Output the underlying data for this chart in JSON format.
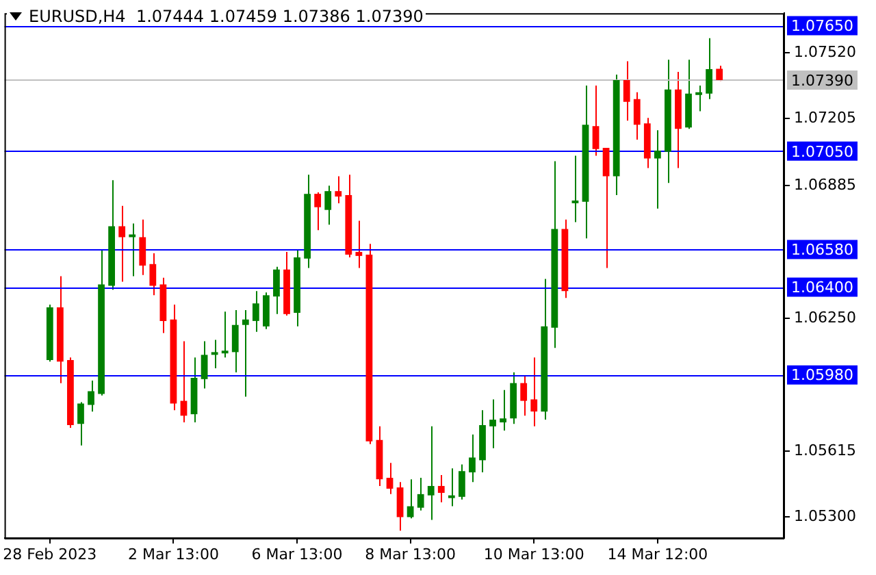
{
  "chart_data": {
    "type": "candlestick",
    "title": "EURUSD,H4  1.07444 1.07459 1.07386 1.07390",
    "categories": [
      "28 Feb 2023",
      null,
      null,
      null,
      null,
      null,
      null,
      null,
      null,
      null,
      null,
      null,
      "2 Mar 13:00",
      null,
      null,
      null,
      null,
      null,
      null,
      null,
      null,
      null,
      null,
      null,
      "6 Mar 13:00",
      null,
      null,
      null,
      null,
      null,
      null,
      null,
      null,
      null,
      null,
      "8 Mar 13:00",
      null,
      null,
      null,
      null,
      null,
      null,
      null,
      null,
      null,
      null,
      null,
      "10 Mar 13:00",
      null,
      null,
      null,
      null,
      null,
      null,
      null,
      null,
      null,
      null,
      null,
      "14 Mar 12:00",
      null,
      null,
      null,
      null,
      null,
      null
    ],
    "ohlc": [
      [
        1.06051,
        1.06316,
        1.06044,
        1.06303
      ],
      [
        1.06303,
        1.06452,
        1.05941,
        1.06044
      ],
      [
        1.06051,
        1.06063,
        1.05727,
        1.0574
      ],
      [
        1.05746,
        1.0585,
        1.05643,
        1.05843
      ],
      [
        1.05837,
        1.05953,
        1.05805,
        1.05902
      ],
      [
        1.05889,
        1.06581,
        1.05882,
        1.06413
      ],
      [
        1.06406,
        1.06911,
        1.06387,
        1.06691
      ],
      [
        1.06691,
        1.06788,
        1.06426,
        1.06639
      ],
      [
        1.06639,
        1.06704,
        1.06452,
        1.06652
      ],
      [
        1.06639,
        1.06723,
        1.06458,
        1.06503
      ],
      [
        1.0651,
        1.06562,
        1.06361,
        1.06406
      ],
      [
        1.06413,
        1.06445,
        1.0618,
        1.06238
      ],
      [
        1.06245,
        1.06316,
        1.05811,
        1.05843
      ],
      [
        1.05856,
        1.06141,
        1.05753,
        1.05785
      ],
      [
        1.05792,
        1.06063,
        1.05753,
        1.05966
      ],
      [
        1.0596,
        1.06141,
        1.05915,
        1.06076
      ],
      [
        1.06076,
        1.06148,
        1.06012,
        1.06089
      ],
      [
        1.06083,
        1.06283,
        1.06063,
        1.06096
      ],
      [
        1.06089,
        1.0629,
        1.05992,
        1.06219
      ],
      [
        1.06219,
        1.0629,
        1.05876,
        1.06245
      ],
      [
        1.06238,
        1.06381,
        1.06186,
        1.06322
      ],
      [
        1.06212,
        1.06374,
        1.06199,
        1.06361
      ],
      [
        1.06355,
        1.06497,
        1.06271,
        1.06484
      ],
      [
        1.06484,
        1.06568,
        1.06264,
        1.06271
      ],
      [
        1.06277,
        1.06575,
        1.06212,
        1.06542
      ],
      [
        1.06536,
        1.06937,
        1.06491,
        1.06846
      ],
      [
        1.06846,
        1.06853,
        1.06672,
        1.06782
      ],
      [
        1.06769,
        1.06885,
        1.06698,
        1.06859
      ],
      [
        1.06859,
        1.0693,
        1.06801,
        1.06833
      ],
      [
        1.0684,
        1.06937,
        1.06542,
        1.06555
      ],
      [
        1.06568,
        1.06717,
        1.06491,
        1.06549
      ],
      [
        1.06555,
        1.06607,
        1.05649,
        1.05662
      ],
      [
        1.05669,
        1.05734,
        1.05449,
        1.05481
      ],
      [
        1.05488,
        1.05559,
        1.0541,
        1.05436
      ],
      [
        1.05442,
        1.05468,
        1.05235,
        1.053
      ],
      [
        1.053,
        1.05481,
        1.05294,
        1.05352
      ],
      [
        1.05345,
        1.05488,
        1.05332,
        1.0541
      ],
      [
        1.05404,
        1.05734,
        1.05287,
        1.05449
      ],
      [
        1.05449,
        1.05501,
        1.05371,
        1.05416
      ],
      [
        1.05391,
        1.05533,
        1.05352,
        1.05404
      ],
      [
        1.05397,
        1.05552,
        1.05384,
        1.0552
      ],
      [
        1.05514,
        1.05695,
        1.05468,
        1.05585
      ],
      [
        1.05572,
        1.05811,
        1.05514,
        1.0574
      ],
      [
        1.05734,
        1.05863,
        1.0563,
        1.05766
      ],
      [
        1.05753,
        1.05908,
        1.05714,
        1.05772
      ],
      [
        1.05772,
        1.05992,
        1.05746,
        1.05941
      ],
      [
        1.05941,
        1.05973,
        1.05785,
        1.05856
      ],
      [
        1.05863,
        1.06063,
        1.05734,
        1.05805
      ],
      [
        1.05805,
        1.06439,
        1.05766,
        1.06212
      ],
      [
        1.06206,
        1.07002,
        1.06109,
        1.06678
      ],
      [
        1.06678,
        1.06723,
        1.06348,
        1.06381
      ],
      [
        1.06801,
        1.07028,
        1.06711,
        1.06814
      ],
      [
        1.06808,
        1.07364,
        1.06633,
        1.07176
      ],
      [
        1.0717,
        1.07364,
        1.07028,
        1.0706
      ],
      [
        1.07066,
        1.07066,
        1.06491,
        1.0693
      ],
      [
        1.0693,
        1.07416,
        1.0684,
        1.0739
      ],
      [
        1.0739,
        1.0748,
        1.07196,
        1.07286
      ],
      [
        1.07299,
        1.07332,
        1.07105,
        1.07176
      ],
      [
        1.07183,
        1.07209,
        1.06969,
        1.07015
      ],
      [
        1.07015,
        1.0715,
        1.06775,
        1.07053
      ],
      [
        1.07047,
        1.07487,
        1.06898,
        1.07345
      ],
      [
        1.07345,
        1.07429,
        1.06969,
        1.07157
      ],
      [
        1.07163,
        1.07487,
        1.07157,
        1.07325
      ],
      [
        1.07319,
        1.07364,
        1.07241,
        1.07332
      ],
      [
        1.07325,
        1.0759,
        1.07299,
        1.07442
      ],
      [
        1.07444,
        1.07459,
        1.07386,
        1.0739
      ]
    ],
    "colors": [
      "#008000",
      "#ff0000",
      "#ff0000",
      "#008000",
      "#008000",
      "#008000",
      "#008000",
      "#ff0000",
      "#008000",
      "#ff0000",
      "#ff0000",
      "#ff0000",
      "#ff0000",
      "#ff0000",
      "#008000",
      "#008000",
      "#008000",
      "#008000",
      "#008000",
      "#008000",
      "#008000",
      "#008000",
      "#008000",
      "#ff0000",
      "#008000",
      "#008000",
      "#ff0000",
      "#008000",
      "#ff0000",
      "#ff0000",
      "#ff0000",
      "#ff0000",
      "#ff0000",
      "#ff0000",
      "#ff0000",
      "#008000",
      "#008000",
      "#008000",
      "#ff0000",
      "#008000",
      "#008000",
      "#008000",
      "#008000",
      "#008000",
      "#008000",
      "#008000",
      "#ff0000",
      "#ff0000",
      "#008000",
      "#008000",
      "#ff0000",
      "#008000",
      "#008000",
      "#ff0000",
      "#ff0000",
      "#008000",
      "#ff0000",
      "#ff0000",
      "#ff0000",
      "#008000",
      "#008000",
      "#ff0000",
      "#008000",
      "#008000",
      "#008000",
      "#ff0000"
    ],
    "ylim": [
      1.052,
      1.0771
    ],
    "yticks": [
      {
        "value": 1.0752,
        "label": "1.07520"
      },
      {
        "value": 1.07205,
        "label": "1.07205"
      },
      {
        "value": 1.06885,
        "label": "1.06885"
      },
      {
        "value": 1.0625,
        "label": "1.06250"
      },
      {
        "value": 1.05615,
        "label": "1.05615"
      },
      {
        "value": 1.053,
        "label": "1.05300"
      }
    ],
    "ref_lines": [
      {
        "axis": "y",
        "value": 1.0765,
        "label": "1.07650",
        "color": "#0000ff"
      },
      {
        "axis": "y",
        "value": 1.0739,
        "label": "1.07390",
        "color": "#c0c0c0"
      },
      {
        "axis": "y",
        "value": 1.0705,
        "label": "1.07050",
        "color": "#0000ff"
      },
      {
        "axis": "y",
        "value": 1.0658,
        "label": "1.06580",
        "color": "#0000ff"
      },
      {
        "axis": "y",
        "value": 1.064,
        "label": "1.06400",
        "color": "#0000ff"
      },
      {
        "axis": "y",
        "value": 1.0598,
        "label": "1.05980",
        "color": "#0000ff"
      }
    ]
  }
}
